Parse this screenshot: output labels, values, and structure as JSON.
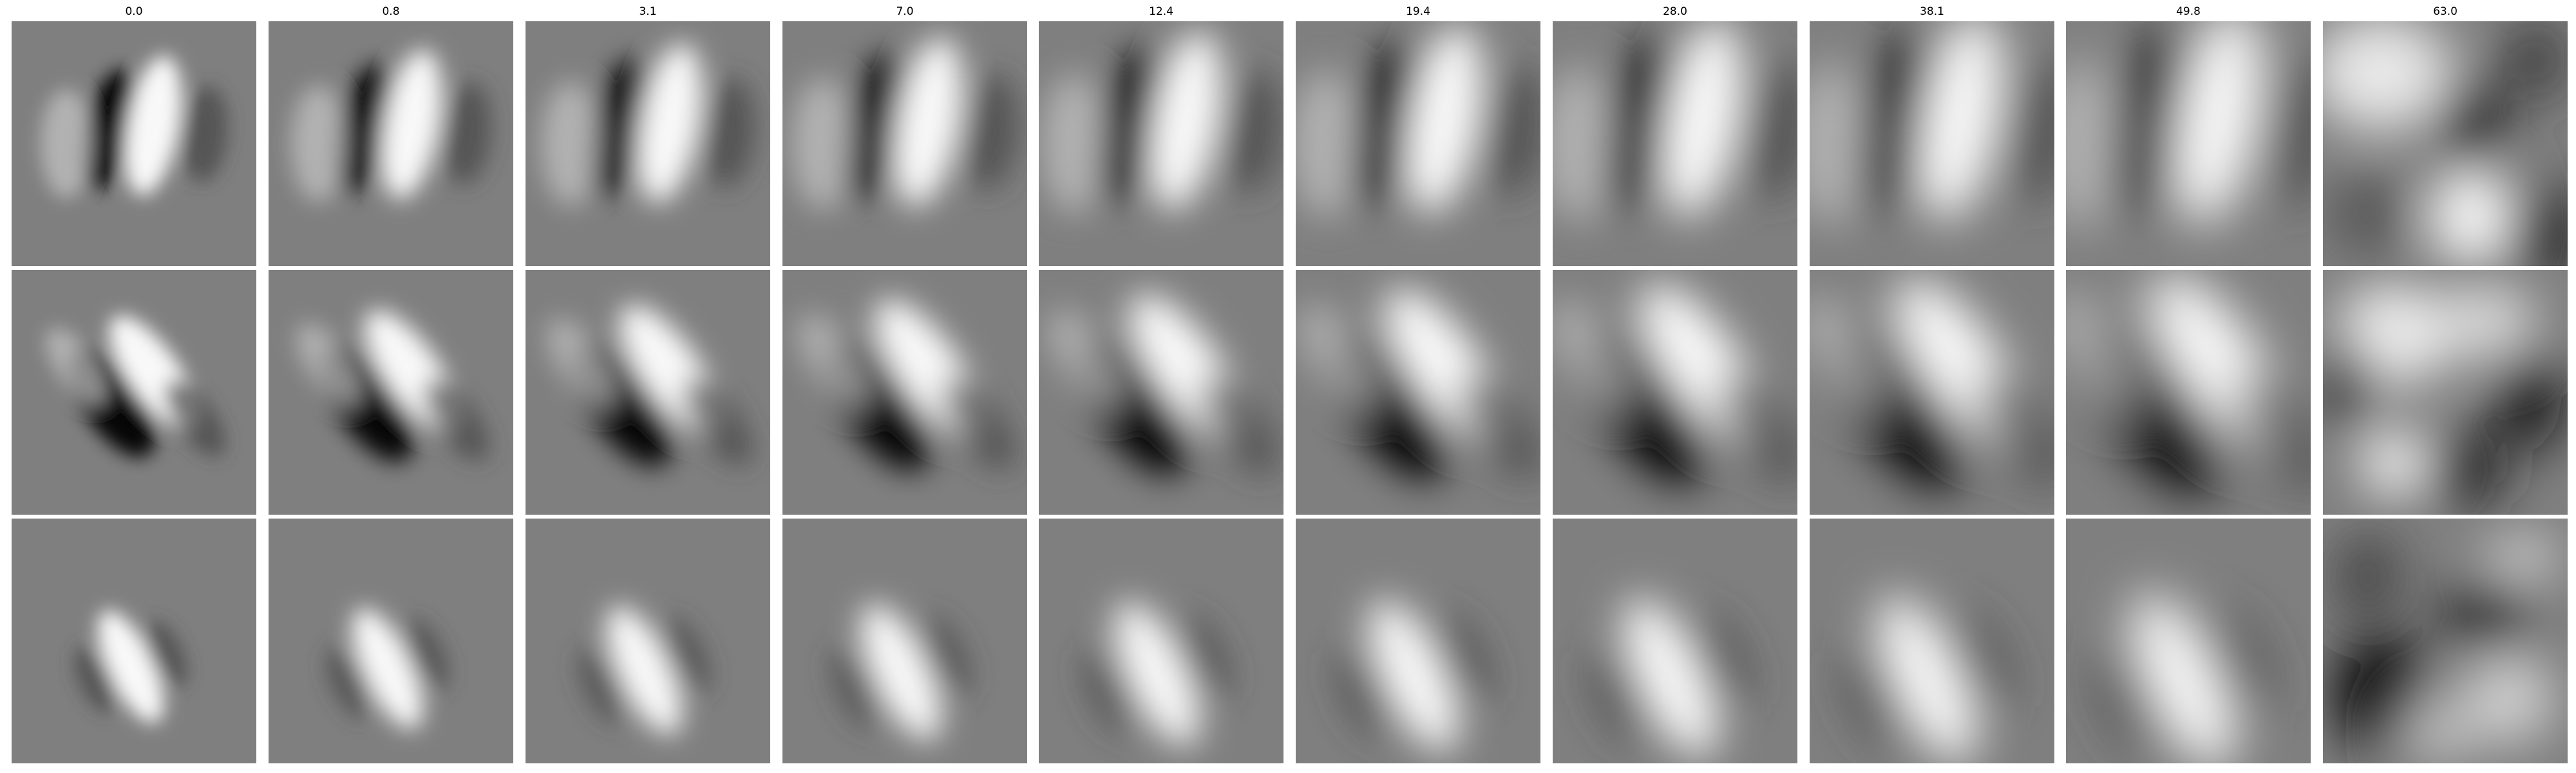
{
  "figure": {
    "column_titles": [
      "0.0",
      "0.8",
      "3.1",
      "7.0",
      "12.4",
      "19.4",
      "28.0",
      "38.1",
      "49.8",
      "63.0"
    ],
    "rows": 3,
    "colormap": "grayscale",
    "background_color": "#ffffff",
    "tile_base_color": "#7f7f7f"
  }
}
